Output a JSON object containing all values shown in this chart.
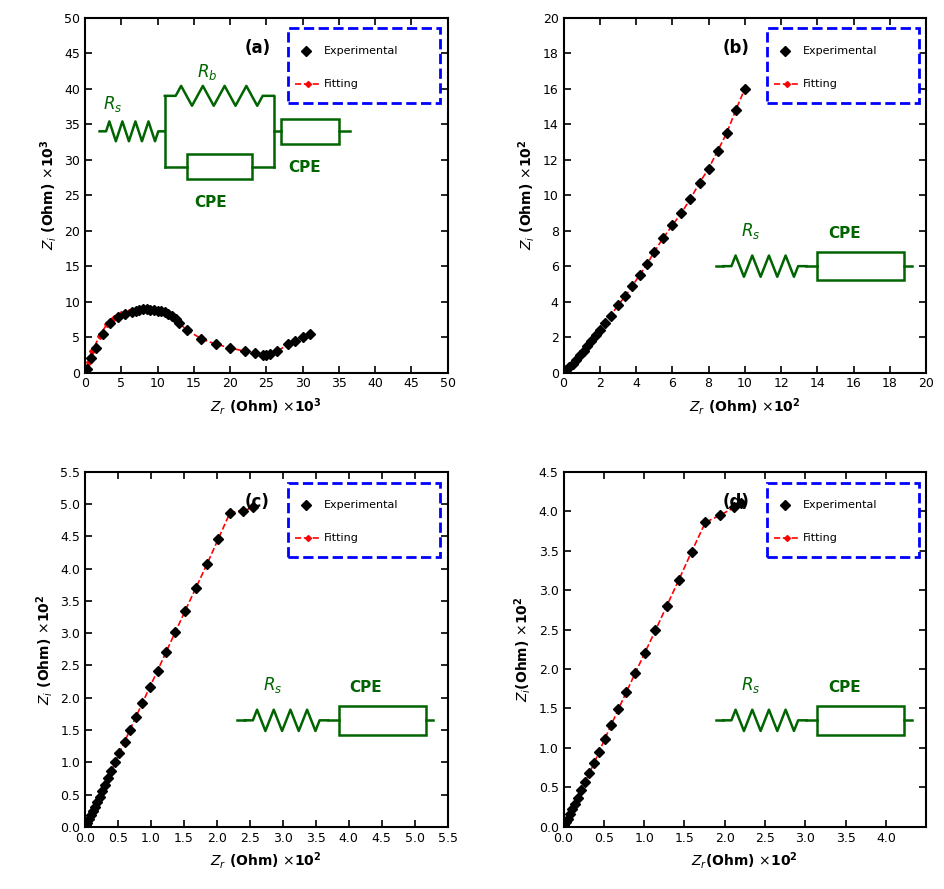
{
  "panel_a": {
    "label": "(a)",
    "xlim": [
      0,
      50
    ],
    "ylim": [
      0,
      50
    ],
    "xticks": [
      0,
      5,
      10,
      15,
      20,
      25,
      30,
      35,
      40,
      45,
      50
    ],
    "yticks": [
      0,
      5,
      10,
      15,
      20,
      25,
      30,
      35,
      40,
      45,
      50
    ],
    "xlabel": "Z_r (Ohm) x10^3",
    "ylabel": "Z_i (Ohm) x10^3",
    "exp_x": [
      0.3,
      0.8,
      1.5,
      2.5,
      3.5,
      4.5,
      5.5,
      6.5,
      7.0,
      7.5,
      8.0,
      8.5,
      9.0,
      9.5,
      10.0,
      10.5,
      11.0,
      11.5,
      12.0,
      12.5,
      13.0,
      14.0,
      16.0,
      18.0,
      20.0,
      22.0,
      23.5,
      24.5,
      25.0,
      25.5,
      26.5,
      28.0,
      29.0,
      30.0,
      31.0
    ],
    "exp_y": [
      0.5,
      2.0,
      3.5,
      5.5,
      7.0,
      7.8,
      8.3,
      8.6,
      8.75,
      8.85,
      8.9,
      8.9,
      8.85,
      8.8,
      8.75,
      8.65,
      8.5,
      8.3,
      8.0,
      7.5,
      7.0,
      6.0,
      4.8,
      4.0,
      3.5,
      3.0,
      2.7,
      2.5,
      2.5,
      2.6,
      3.0,
      4.0,
      4.5,
      5.0,
      5.5
    ],
    "fit_x": [
      0.1,
      0.5,
      1.0,
      2.0,
      3.0,
      4.0,
      5.0,
      6.0,
      7.0,
      7.5,
      8.0,
      8.5,
      9.0,
      9.5,
      10.0,
      10.5,
      11.0,
      11.5,
      12.0,
      12.5,
      13.0,
      14.0,
      16.0,
      18.0,
      20.0,
      22.0,
      23.5,
      24.5,
      25.0,
      25.5,
      26.5,
      28.0,
      29.0,
      30.0,
      31.0
    ],
    "fit_y": [
      0.2,
      1.5,
      3.0,
      5.2,
      6.8,
      7.7,
      8.2,
      8.55,
      8.73,
      8.83,
      8.9,
      8.9,
      8.87,
      8.78,
      8.68,
      8.55,
      8.38,
      8.15,
      7.85,
      7.45,
      7.0,
      6.0,
      4.8,
      4.0,
      3.5,
      3.0,
      2.7,
      2.5,
      2.5,
      2.6,
      3.0,
      4.0,
      4.5,
      5.0,
      5.5
    ]
  },
  "panel_b": {
    "label": "(b)",
    "xlim": [
      0,
      20
    ],
    "ylim": [
      0,
      20
    ],
    "xticks": [
      0,
      2,
      4,
      6,
      8,
      10,
      12,
      14,
      16,
      18,
      20
    ],
    "yticks": [
      0,
      2,
      4,
      6,
      8,
      10,
      12,
      14,
      16,
      18,
      20
    ],
    "xlabel": "Z_r (Ohm) x10^2",
    "ylabel": "Z_i (Ohm) x10^2",
    "exp_x": [
      0.05,
      0.15,
      0.3,
      0.5,
      0.7,
      0.9,
      1.1,
      1.3,
      1.5,
      1.8,
      2.0,
      2.3,
      2.6,
      3.0,
      3.4,
      3.8,
      4.2,
      4.6,
      5.0,
      5.5,
      6.0,
      6.5,
      7.0,
      7.5,
      8.0,
      8.5,
      9.0,
      9.5,
      10.0
    ],
    "exp_y": [
      0.05,
      0.15,
      0.3,
      0.5,
      0.7,
      1.0,
      1.2,
      1.5,
      1.8,
      2.1,
      2.4,
      2.8,
      3.2,
      3.8,
      4.3,
      4.9,
      5.5,
      6.1,
      6.8,
      7.6,
      8.3,
      9.0,
      9.8,
      10.7,
      11.5,
      12.5,
      13.5,
      14.8,
      16.0
    ],
    "fit_x": [
      0.02,
      0.15,
      0.3,
      0.5,
      0.7,
      0.9,
      1.1,
      1.3,
      1.5,
      1.8,
      2.0,
      2.3,
      2.6,
      3.0,
      3.4,
      3.8,
      4.2,
      4.6,
      5.0,
      5.5,
      6.0,
      6.5,
      7.0,
      7.5,
      8.0,
      8.5,
      9.0,
      9.5,
      10.0
    ],
    "fit_y": [
      0.02,
      0.15,
      0.3,
      0.5,
      0.7,
      1.0,
      1.2,
      1.5,
      1.8,
      2.1,
      2.4,
      2.8,
      3.2,
      3.8,
      4.3,
      4.9,
      5.5,
      6.1,
      6.8,
      7.6,
      8.3,
      9.0,
      9.8,
      10.7,
      11.5,
      12.5,
      13.5,
      14.8,
      16.0
    ]
  },
  "panel_c": {
    "label": "(c)",
    "xlim": [
      0,
      5.5
    ],
    "ylim": [
      0,
      5.5
    ],
    "xticks": [
      0,
      0.5,
      1.0,
      1.5,
      2.0,
      2.5,
      3.0,
      3.5,
      4.0,
      4.5,
      5.0,
      5.5
    ],
    "yticks": [
      0,
      0.5,
      1.0,
      1.5,
      2.0,
      2.5,
      3.0,
      3.5,
      4.0,
      4.5,
      5.0,
      5.5
    ],
    "xlabel": "Z_r (Ohm) x10^2",
    "ylabel": "Z_i (Ohm) x10^2",
    "exp_x": [
      0.01,
      0.03,
      0.06,
      0.09,
      0.12,
      0.15,
      0.18,
      0.22,
      0.26,
      0.3,
      0.35,
      0.4,
      0.46,
      0.52,
      0.6,
      0.68,
      0.77,
      0.87,
      0.98,
      1.1,
      1.23,
      1.37,
      1.52,
      1.68,
      1.85,
      2.02,
      2.2,
      2.4,
      2.55
    ],
    "exp_y": [
      0.02,
      0.06,
      0.12,
      0.18,
      0.24,
      0.3,
      0.38,
      0.46,
      0.55,
      0.64,
      0.75,
      0.87,
      1.0,
      1.14,
      1.32,
      1.5,
      1.7,
      1.92,
      2.16,
      2.42,
      2.71,
      3.02,
      3.35,
      3.7,
      4.07,
      4.46,
      4.87,
      4.9,
      4.95
    ],
    "fit_x": [
      0.005,
      0.03,
      0.06,
      0.09,
      0.12,
      0.15,
      0.18,
      0.22,
      0.26,
      0.3,
      0.35,
      0.4,
      0.46,
      0.52,
      0.6,
      0.68,
      0.77,
      0.87,
      0.98,
      1.1,
      1.23,
      1.37,
      1.52,
      1.68,
      1.85,
      2.02,
      2.2,
      2.4,
      2.55
    ],
    "fit_y": [
      0.01,
      0.06,
      0.12,
      0.18,
      0.24,
      0.3,
      0.38,
      0.46,
      0.55,
      0.64,
      0.75,
      0.87,
      1.0,
      1.14,
      1.32,
      1.5,
      1.7,
      1.92,
      2.16,
      2.42,
      2.71,
      3.02,
      3.35,
      3.7,
      4.07,
      4.46,
      4.87,
      4.9,
      4.95
    ]
  },
  "panel_d": {
    "label": "(d)",
    "xlim": [
      0,
      4.5
    ],
    "ylim": [
      0,
      4.5
    ],
    "xticks": [
      0,
      0.5,
      1.0,
      1.5,
      2.0,
      2.5,
      3.0,
      3.5,
      4.0
    ],
    "yticks": [
      0,
      0.5,
      1.0,
      1.5,
      2.0,
      2.5,
      3.0,
      3.5,
      4.0,
      4.5
    ],
    "xlabel": "Z_r(Ohm) x10^2",
    "ylabel": "Z_i(Ohm) x10^2",
    "exp_x": [
      0.01,
      0.03,
      0.05,
      0.08,
      0.11,
      0.14,
      0.18,
      0.22,
      0.27,
      0.32,
      0.38,
      0.44,
      0.51,
      0.59,
      0.68,
      0.78,
      0.89,
      1.01,
      1.14,
      1.28,
      1.43,
      1.59,
      1.76,
      1.94,
      2.12,
      2.2
    ],
    "exp_y": [
      0.02,
      0.06,
      0.1,
      0.16,
      0.22,
      0.29,
      0.37,
      0.46,
      0.57,
      0.68,
      0.81,
      0.95,
      1.11,
      1.29,
      1.49,
      1.71,
      1.95,
      2.21,
      2.49,
      2.8,
      3.13,
      3.49,
      3.86,
      3.95,
      4.05,
      4.1
    ],
    "fit_x": [
      0.005,
      0.03,
      0.05,
      0.08,
      0.11,
      0.14,
      0.18,
      0.22,
      0.27,
      0.32,
      0.38,
      0.44,
      0.51,
      0.59,
      0.68,
      0.78,
      0.89,
      1.01,
      1.14,
      1.28,
      1.43,
      1.59,
      1.76,
      1.94,
      2.12,
      2.2
    ],
    "fit_y": [
      0.01,
      0.06,
      0.1,
      0.16,
      0.22,
      0.29,
      0.37,
      0.46,
      0.57,
      0.68,
      0.81,
      0.95,
      1.11,
      1.29,
      1.49,
      1.71,
      1.95,
      2.21,
      2.49,
      2.8,
      3.13,
      3.49,
      3.86,
      3.95,
      4.05,
      4.1
    ]
  },
  "colors": {
    "experimental": "#000000",
    "fitting": "#ff0000",
    "circuit": "#006400",
    "legend_box_edge": "#0000ff"
  }
}
